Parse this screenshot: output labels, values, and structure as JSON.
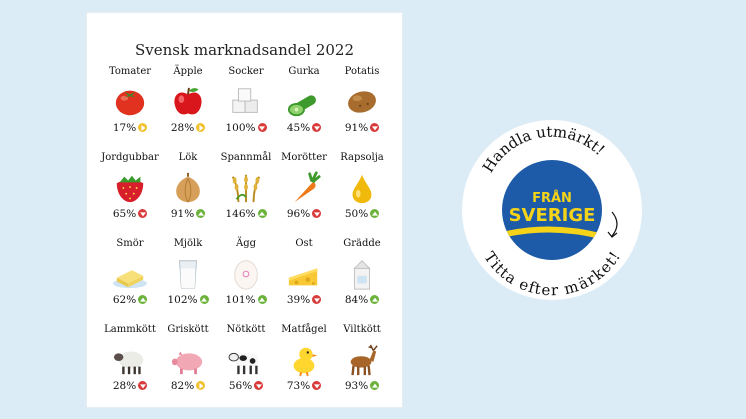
{
  "title": "Svensk marknadsandel 2022",
  "items": [
    {
      "label": "Tomater",
      "value": "17%",
      "trend": "right",
      "icon": "tomato-icon"
    },
    {
      "label": "Äpple",
      "value": "28%",
      "trend": "right",
      "icon": "apple-icon"
    },
    {
      "label": "Socker",
      "value": "100%",
      "trend": "down",
      "icon": "sugar-cubes-icon"
    },
    {
      "label": "Gurka",
      "value": "45%",
      "trend": "down",
      "icon": "cucumber-icon"
    },
    {
      "label": "Potatis",
      "value": "91%",
      "trend": "down",
      "icon": "potato-icon"
    },
    {
      "label": "Jordgubbar",
      "value": "65%",
      "trend": "down",
      "icon": "strawberry-icon"
    },
    {
      "label": "Lök",
      "value": "91%",
      "trend": "up",
      "icon": "onion-icon"
    },
    {
      "label": "Spannmål",
      "value": "146%",
      "trend": "up",
      "icon": "grain-icon"
    },
    {
      "label": "Morötter",
      "value": "96%",
      "trend": "down",
      "icon": "carrot-icon"
    },
    {
      "label": "Rapsolja",
      "value": "50%",
      "trend": "up",
      "icon": "oil-drop-icon"
    },
    {
      "label": "Smör",
      "value": "62%",
      "trend": "up",
      "icon": "butter-icon"
    },
    {
      "label": "Mjölk",
      "value": "102%",
      "trend": "up",
      "icon": "milk-glass-icon"
    },
    {
      "label": "Ägg",
      "value": "101%",
      "trend": "up",
      "icon": "egg-icon"
    },
    {
      "label": "Ost",
      "value": "39%",
      "trend": "down",
      "icon": "cheese-icon"
    },
    {
      "label": "Grädde",
      "value": "84%",
      "trend": "up",
      "icon": "cream-carton-icon"
    },
    {
      "label": "Lammkött",
      "value": "28%",
      "trend": "down",
      "icon": "sheep-icon"
    },
    {
      "label": "Griskött",
      "value": "82%",
      "trend": "right",
      "icon": "pig-icon"
    },
    {
      "label": "Nötkött",
      "value": "56%",
      "trend": "down",
      "icon": "cow-icon"
    },
    {
      "label": "Matfågel",
      "value": "73%",
      "trend": "down",
      "icon": "chick-icon"
    },
    {
      "label": "Viltkött",
      "value": "93%",
      "trend": "up",
      "icon": "deer-icon"
    }
  ],
  "badge": {
    "top_text": "Handla utmärkt!",
    "bottom_text": "Titta efter märket!",
    "logo_line1": "FRÅN",
    "logo_line2": "SVERIGE",
    "logo_blue": "#1d5ba8",
    "logo_yellow": "#f5d318"
  },
  "colors": {
    "background": "#dcecf7",
    "trend_up": "#6bb33a",
    "trend_down": "#d93a3a",
    "trend_flat": "#f2c12e"
  }
}
